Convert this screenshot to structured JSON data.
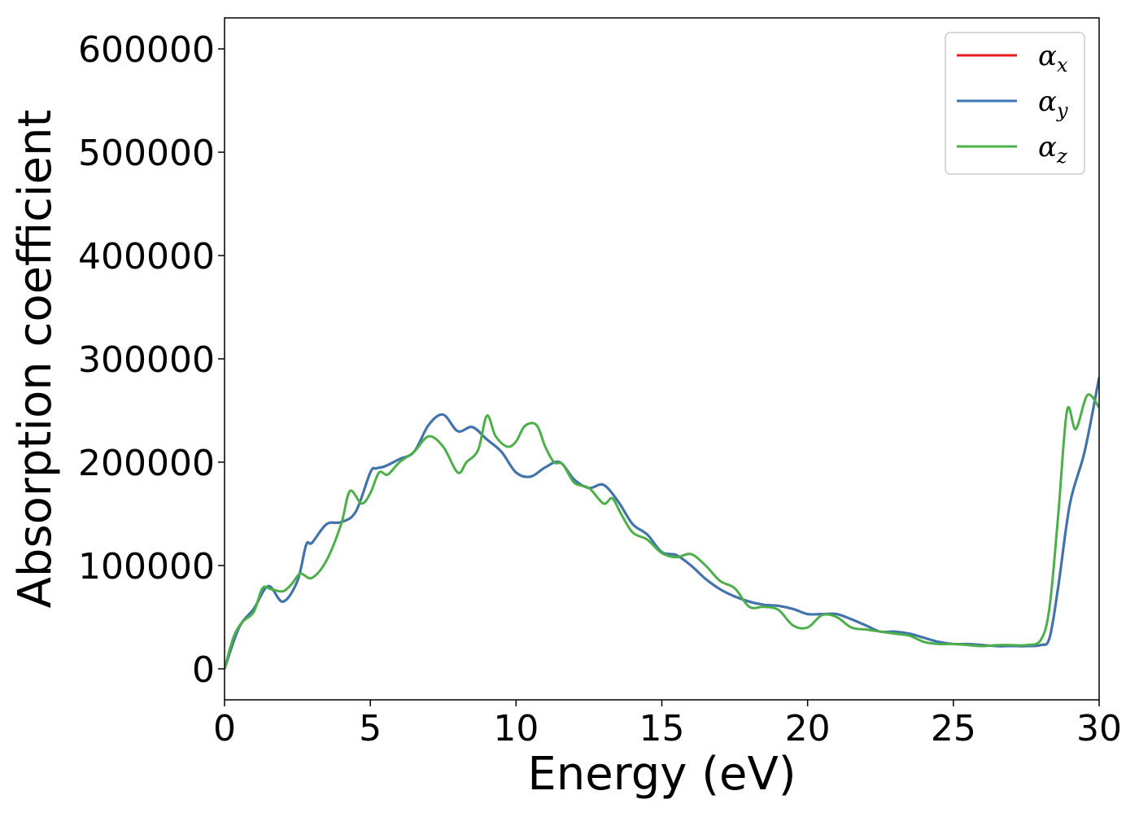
{
  "chart_data": {
    "type": "line",
    "xlabel": "Energy (eV)",
    "ylabel": "Absorption coefficient",
    "xlim": [
      0,
      30
    ],
    "ylim": [
      -30000,
      630000
    ],
    "x_ticks": [
      0,
      5,
      10,
      15,
      20,
      25,
      30
    ],
    "x_tick_labels": [
      "0",
      "5",
      "10",
      "15",
      "20",
      "25",
      "30"
    ],
    "y_ticks": [
      0,
      100000,
      200000,
      300000,
      400000,
      500000,
      600000
    ],
    "y_tick_labels": [
      "0",
      "100000",
      "200000",
      "300000",
      "400000",
      "500000",
      "600000"
    ],
    "grid": false,
    "legend_position": "top-right",
    "series": [
      {
        "name": "αx",
        "legend_symbol": "α",
        "legend_subscript": "x",
        "color": "#e41a1c",
        "x": [
          0,
          0.5,
          1,
          1.5,
          2,
          2.5,
          2.8,
          3,
          3.5,
          4,
          4.5,
          5,
          5.2,
          5.5,
          6,
          6.5,
          7,
          7.5,
          8,
          8.5,
          9,
          9.5,
          10,
          10.5,
          11,
          11.5,
          12,
          12.5,
          13,
          13.5,
          14,
          14.5,
          15,
          15.5,
          16,
          16.5,
          17,
          17.5,
          18,
          18.5,
          19,
          19.5,
          20,
          20.5,
          21,
          21.5,
          22,
          22.5,
          23,
          23.5,
          24,
          24.5,
          25,
          25.5,
          26,
          26.5,
          27,
          27.5,
          28,
          28.3,
          28.6,
          29,
          29.5,
          30
        ],
        "y": [
          0,
          40000,
          58000,
          80000,
          65000,
          85000,
          120000,
          122000,
          140000,
          142000,
          152000,
          190000,
          194000,
          196000,
          203000,
          210000,
          236000,
          246000,
          230000,
          234000,
          222000,
          210000,
          190000,
          186000,
          195000,
          200000,
          183000,
          175000,
          178000,
          162000,
          140000,
          130000,
          113000,
          110000,
          100000,
          87000,
          77000,
          70000,
          65000,
          62000,
          61000,
          58000,
          53000,
          53000,
          53000,
          48000,
          42000,
          36000,
          36000,
          34000,
          30000,
          26000,
          24000,
          24000,
          23000,
          22000,
          22000,
          22000,
          23000,
          30000,
          80000,
          160000,
          210000,
          282000
        ]
      },
      {
        "name": "αy",
        "legend_symbol": "α",
        "legend_subscript": "y",
        "color": "#3a76b0",
        "x": [
          0,
          0.5,
          1,
          1.5,
          2,
          2.5,
          2.8,
          3,
          3.5,
          4,
          4.5,
          5,
          5.2,
          5.5,
          6,
          6.5,
          7,
          7.5,
          8,
          8.5,
          9,
          9.5,
          10,
          10.5,
          11,
          11.5,
          12,
          12.5,
          13,
          13.5,
          14,
          14.5,
          15,
          15.5,
          16,
          16.5,
          17,
          17.5,
          18,
          18.5,
          19,
          19.5,
          20,
          20.5,
          21,
          21.5,
          22,
          22.5,
          23,
          23.5,
          24,
          24.5,
          25,
          25.5,
          26,
          26.5,
          27,
          27.5,
          28,
          28.3,
          28.6,
          29,
          29.5,
          30
        ],
        "y": [
          0,
          40000,
          58000,
          80000,
          65000,
          85000,
          120000,
          122000,
          140000,
          142000,
          152000,
          190000,
          194000,
          196000,
          203000,
          210000,
          236000,
          246000,
          230000,
          234000,
          222000,
          210000,
          190000,
          186000,
          195000,
          200000,
          183000,
          175000,
          178000,
          162000,
          140000,
          130000,
          113000,
          110000,
          100000,
          87000,
          77000,
          70000,
          65000,
          62000,
          61000,
          58000,
          53000,
          53000,
          53000,
          48000,
          42000,
          36000,
          36000,
          34000,
          30000,
          26000,
          24000,
          24000,
          23000,
          22000,
          22000,
          22000,
          23000,
          30000,
          80000,
          160000,
          210000,
          282000
        ]
      },
      {
        "name": "αz",
        "legend_symbol": "α",
        "legend_subscript": "z",
        "color": "#4daf4a",
        "x": [
          0,
          0.3,
          0.6,
          1,
          1.3,
          1.6,
          2,
          2.3,
          2.6,
          3,
          3.5,
          4,
          4.3,
          4.7,
          5,
          5.3,
          5.6,
          6,
          6.5,
          7,
          7.5,
          8,
          8.3,
          8.7,
          9,
          9.3,
          9.7,
          10,
          10.3,
          10.7,
          11,
          11.3,
          11.6,
          12,
          12.5,
          13,
          13.3,
          13.6,
          14,
          14.5,
          15,
          15.5,
          16,
          16.5,
          17,
          17.5,
          18,
          18.5,
          19,
          19.5,
          20,
          20.5,
          21,
          21.5,
          22,
          22.5,
          23,
          23.5,
          24,
          24.5,
          25,
          25.5,
          26,
          26.5,
          27,
          27.5,
          28,
          28.3,
          28.6,
          28.9,
          29.2,
          29.6,
          30
        ],
        "y": [
          0,
          30000,
          45000,
          55000,
          78000,
          77000,
          75000,
          82000,
          92000,
          88000,
          105000,
          140000,
          172000,
          160000,
          170000,
          190000,
          188000,
          200000,
          210000,
          225000,
          215000,
          190000,
          200000,
          212000,
          245000,
          225000,
          215000,
          220000,
          235000,
          236000,
          215000,
          200000,
          198000,
          180000,
          175000,
          160000,
          165000,
          150000,
          132000,
          125000,
          112000,
          108000,
          111000,
          100000,
          85000,
          78000,
          60000,
          60000,
          57000,
          42000,
          40000,
          52000,
          50000,
          40000,
          38000,
          36000,
          34000,
          32000,
          26000,
          24000,
          24000,
          23000,
          22000,
          23000,
          23000,
          23000,
          28000,
          60000,
          150000,
          250000,
          232000,
          265000,
          253000
        ]
      }
    ]
  }
}
